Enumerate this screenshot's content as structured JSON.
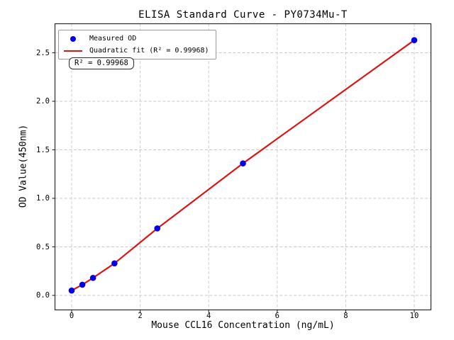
{
  "chart_data": {
    "type": "scatter",
    "title": "ELISA Standard Curve - PY0734Mu-T",
    "xlabel": "Mouse CCL16 Concentration (ng/mL)",
    "ylabel": "OD Value(450nm)",
    "xlim": [
      -0.5,
      10.5
    ],
    "ylim": [
      -0.15,
      2.8
    ],
    "grid": true,
    "grid_style": "dashed",
    "x_ticks": {
      "values": [
        0,
        2,
        4,
        6,
        8,
        10
      ],
      "labels": [
        "0",
        "2",
        "4",
        "6",
        "8",
        "10"
      ]
    },
    "y_ticks": {
      "values": [
        0,
        0.5,
        1.0,
        1.5,
        2.0,
        2.5
      ],
      "labels": [
        "0.0",
        "0.5",
        "1.0",
        "1.5",
        "2.0",
        "2.5"
      ]
    },
    "series": [
      {
        "name": "Measured OD",
        "type": "scatter",
        "marker": "circle",
        "color": "#0000e6",
        "x": [
          0,
          0.3125,
          0.625,
          1.25,
          2.5,
          5,
          10
        ],
        "y": [
          0.05,
          0.11,
          0.18,
          0.33,
          0.69,
          1.36,
          2.63
        ]
      },
      {
        "name": "Quadratic fit",
        "type": "line",
        "color": "#dc1414",
        "x": [
          0,
          0.3125,
          0.625,
          1.25,
          2.5,
          5,
          10
        ],
        "y": [
          0.05,
          0.11,
          0.18,
          0.33,
          0.69,
          1.36,
          2.63
        ]
      }
    ],
    "legend": {
      "position": "upper-left",
      "entries": [
        {
          "label": "Measured OD",
          "marker": "circle",
          "color": "#0000e6"
        },
        {
          "label": "Quadratic fit (R² = 0.99968)",
          "marker": "line",
          "color": "#dc1414"
        }
      ]
    },
    "annotation": {
      "text": "R² = 0.99968"
    },
    "r_squared": "0.99968",
    "colors": {
      "marker": "#0000e6",
      "fit_line": "#dc1414",
      "grid": "#c8c8c8",
      "spine": "#2a2a2a",
      "background": "#ffffff"
    }
  }
}
